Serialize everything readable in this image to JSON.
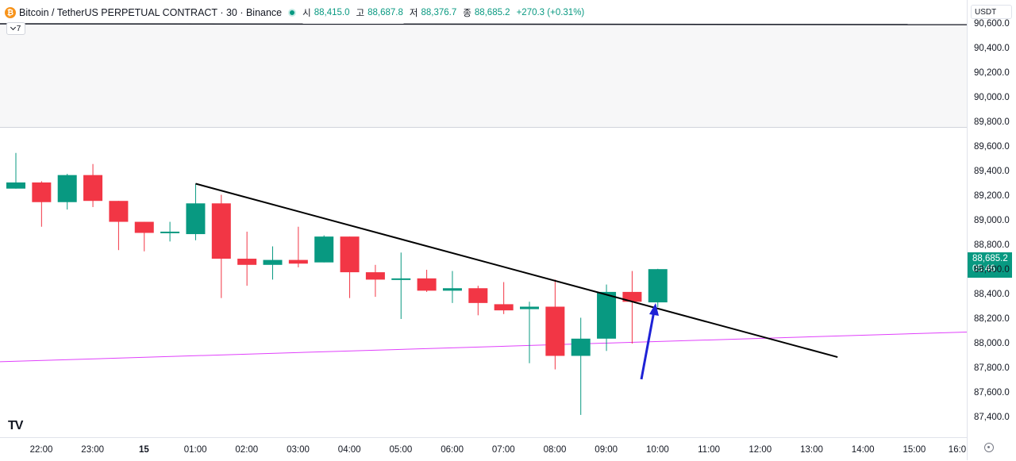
{
  "header": {
    "symbol": "Bitcoin / TetherUS PERPETUAL CONTRACT · 30 · Binance",
    "logo_glyph": "₿",
    "open_label": "시",
    "open_value": "88,415.0",
    "high_label": "고",
    "high_value": "88,687.8",
    "low_label": "저",
    "low_value": "88,376.7",
    "close_label": "종",
    "close_value": "88,685.2",
    "change": "+270.3 (+0.31%)"
  },
  "collapse": {
    "count": "7"
  },
  "currency": "USDT",
  "price_badge": {
    "price": "88,685.2",
    "countdown": "05:46"
  },
  "colors": {
    "up": "#089981",
    "down": "#f23645",
    "trendline": "#000000",
    "ma_line": "#e040fb",
    "arrow": "#1e22d6"
  },
  "chart_data": {
    "type": "candlestick",
    "y_ticks": [
      "90,600.0",
      "90,400.0",
      "90,200.0",
      "90,000.0",
      "89,800.0",
      "89,600.0",
      "89,400.0",
      "89,200.0",
      "89,000.0",
      "88,800.0",
      "88,600.0",
      "88,400.0",
      "88,200.0",
      "88,000.0",
      "87,800.0",
      "87,600.0",
      "87,400.0"
    ],
    "x_ticks": [
      "22:00",
      "23:00",
      "15",
      "01:00",
      "02:00",
      "03:00",
      "04:00",
      "05:00",
      "06:00",
      "07:00",
      "08:00",
      "09:00",
      "10:00",
      "11:00",
      "12:00",
      "13:00",
      "14:00",
      "15:00",
      "16:0"
    ],
    "candles": [
      {
        "time": "21:30",
        "open": 89340,
        "high": 89630,
        "low": 89340,
        "close": 89390
      },
      {
        "time": "22:00",
        "open": 89390,
        "high": 89400,
        "low": 89030,
        "close": 89230
      },
      {
        "time": "22:30",
        "open": 89230,
        "high": 89460,
        "low": 89170,
        "close": 89450
      },
      {
        "time": "23:00",
        "open": 89450,
        "high": 89540,
        "low": 89190,
        "close": 89240
      },
      {
        "time": "23:30",
        "open": 89240,
        "high": 89240,
        "low": 88840,
        "close": 89070
      },
      {
        "time": "00:00",
        "open": 89070,
        "high": 89070,
        "low": 88830,
        "close": 88980
      },
      {
        "time": "00:30",
        "open": 88980,
        "high": 89070,
        "low": 88910,
        "close": 88990
      },
      {
        "time": "01:00",
        "open": 88970,
        "high": 89380,
        "low": 88920,
        "close": 89220
      },
      {
        "time": "01:30",
        "open": 89220,
        "high": 89290,
        "low": 88450,
        "close": 88770
      },
      {
        "time": "02:00",
        "open": 88770,
        "high": 88990,
        "low": 88550,
        "close": 88720
      },
      {
        "time": "02:30",
        "open": 88720,
        "high": 88870,
        "low": 88600,
        "close": 88760
      },
      {
        "time": "03:00",
        "open": 88760,
        "high": 89030,
        "low": 88700,
        "close": 88730
      },
      {
        "time": "03:30",
        "open": 88740,
        "high": 88960,
        "low": 88740,
        "close": 88950
      },
      {
        "time": "04:00",
        "open": 88950,
        "high": 88950,
        "low": 88450,
        "close": 88660
      },
      {
        "time": "04:30",
        "open": 88660,
        "high": 88720,
        "low": 88460,
        "close": 88600
      },
      {
        "time": "05:00",
        "open": 88600,
        "high": 88820,
        "low": 88280,
        "close": 88610
      },
      {
        "time": "05:30",
        "open": 88610,
        "high": 88680,
        "low": 88500,
        "close": 88510
      },
      {
        "time": "06:00",
        "open": 88510,
        "high": 88670,
        "low": 88410,
        "close": 88530
      },
      {
        "time": "06:30",
        "open": 88530,
        "high": 88550,
        "low": 88310,
        "close": 88410
      },
      {
        "time": "07:00",
        "open": 88400,
        "high": 88580,
        "low": 88320,
        "close": 88350
      },
      {
        "time": "07:30",
        "open": 88360,
        "high": 88420,
        "low": 87920,
        "close": 88380
      },
      {
        "time": "08:00",
        "open": 88380,
        "high": 88600,
        "low": 87870,
        "close": 87980
      },
      {
        "time": "08:30",
        "open": 87980,
        "high": 88290,
        "low": 87500,
        "close": 88120
      },
      {
        "time": "09:00",
        "open": 88120,
        "high": 88560,
        "low": 88020,
        "close": 88500
      },
      {
        "time": "09:30",
        "open": 88500,
        "high": 88670,
        "low": 88080,
        "close": 88420
      },
      {
        "time": "10:00",
        "open": 88415,
        "high": 88687.8,
        "low": 88376.7,
        "close": 88685.2
      }
    ],
    "trendline": [
      {
        "time": "01:00",
        "price": 89380
      },
      {
        "time": "13:30",
        "price": 87970
      }
    ],
    "ma_line": [
      {
        "time": "21:00",
        "price": 87930
      },
      {
        "time": "16:30",
        "price": 88180
      }
    ],
    "ylim": [
      87330,
      90680
    ],
    "grid": false
  }
}
